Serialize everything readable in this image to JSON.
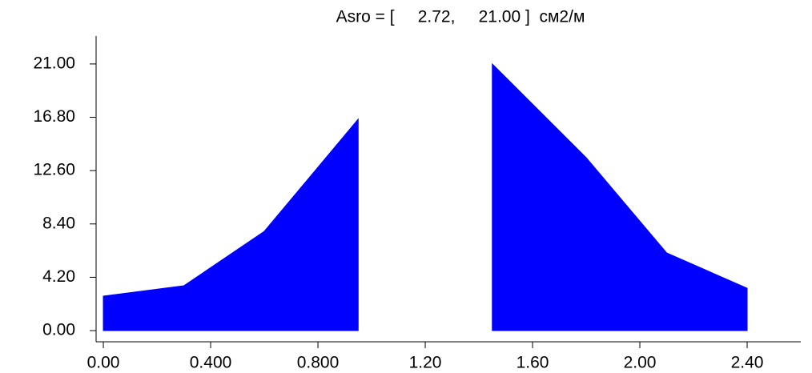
{
  "chart_data": {
    "type": "area",
    "title": "Asro = [     2.72,     21.00 ]  см2/м",
    "series": [
      {
        "color": "#0000ff",
        "x": [
          0,
          0.3,
          0.6,
          0.95
        ],
        "values": [
          2.72,
          3.53,
          7.82,
          16.65
        ]
      },
      {
        "color": "#0000ff",
        "x": [
          1.45,
          1.8,
          2.1,
          2.4
        ],
        "values": [
          21.0,
          13.62,
          6.12,
          3.34
        ]
      }
    ],
    "xlim": [
      -0.027,
      2.6
    ],
    "ylim": [
      -0.88,
      23.2
    ],
    "xticks": [
      {
        "value": 0,
        "label": "0.00"
      },
      {
        "value": 0.4,
        "label": "0.400"
      },
      {
        "value": 0.8,
        "label": "0.800"
      },
      {
        "value": 1.2,
        "label": "1.20"
      },
      {
        "value": 1.6,
        "label": "1.60"
      },
      {
        "value": 2.0,
        "label": "2.00"
      },
      {
        "value": 2.4,
        "label": "2.40"
      }
    ],
    "yticks": [
      {
        "value": 0,
        "label": "0.00"
      },
      {
        "value": 4.2,
        "label": "4.20"
      },
      {
        "value": 8.4,
        "label": "8.40"
      },
      {
        "value": 12.6,
        "label": "12.60"
      },
      {
        "value": 16.8,
        "label": "16.80"
      },
      {
        "value": 21,
        "label": "21.00"
      }
    ]
  }
}
